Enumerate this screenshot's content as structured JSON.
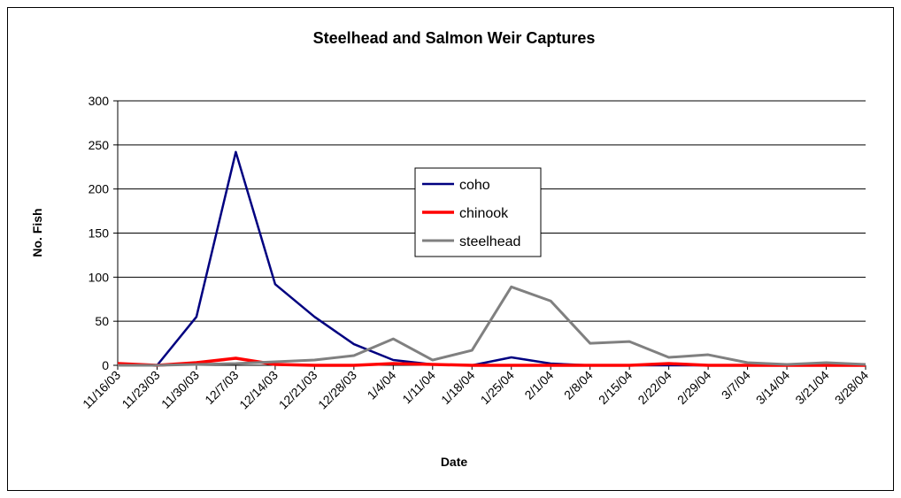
{
  "chart_data": {
    "type": "line",
    "title": "Steelhead and Salmon Weir Captures",
    "x_label": "Date",
    "y_label": "No. Fish",
    "categories": [
      "11/16/03",
      "11/23/03",
      "11/30/03",
      "12/7/03",
      "12/14/03",
      "12/21/03",
      "12/28/03",
      "1/4/04",
      "1/11/04",
      "1/18/04",
      "1/25/04",
      "2/1/04",
      "2/8/04",
      "2/15/04",
      "2/22/04",
      "2/29/04",
      "3/7/04",
      "3/14/04",
      "3/21/04",
      "3/28/04"
    ],
    "series": [
      {
        "name": "coho",
        "color": "#000080",
        "values": [
          0,
          0,
          55,
          242,
          92,
          55,
          24,
          6,
          1,
          0,
          9,
          2,
          0,
          0,
          0,
          0,
          0,
          0,
          0,
          0
        ]
      },
      {
        "name": "chinook",
        "color": "#ff0000",
        "values": [
          2,
          0,
          3,
          8,
          1,
          0,
          0,
          2,
          1,
          0,
          0,
          0,
          0,
          0,
          2,
          0,
          0,
          0,
          0,
          0
        ]
      },
      {
        "name": "steelhead",
        "color": "#808080",
        "values": [
          0,
          0,
          1,
          2,
          4,
          6,
          11,
          30,
          6,
          17,
          89,
          73,
          25,
          27,
          9,
          12,
          3,
          1,
          3,
          1
        ]
      }
    ],
    "ylim": [
      0,
      300
    ],
    "yticks": [
      0,
      50,
      100,
      150,
      200,
      250,
      300
    ],
    "grid": true
  }
}
